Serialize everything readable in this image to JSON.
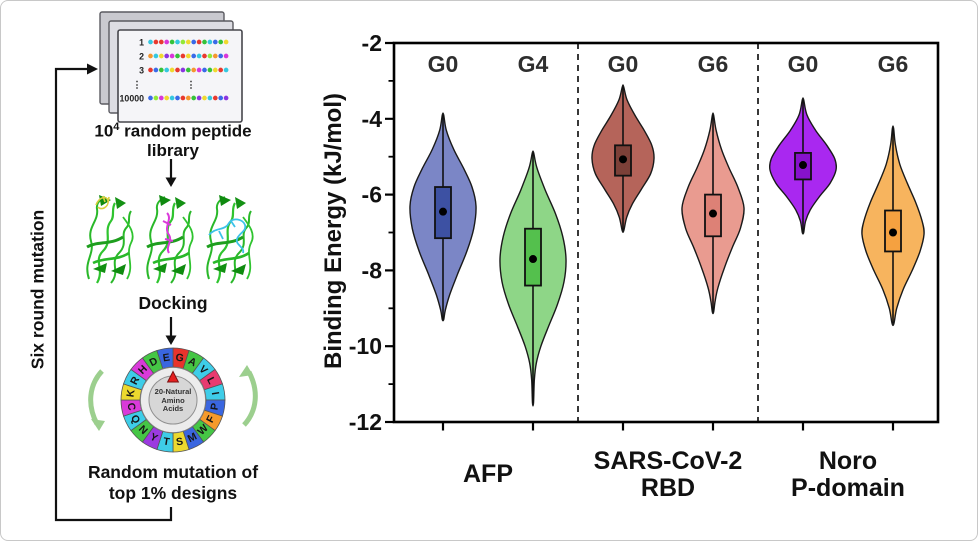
{
  "workflow": {
    "six_round_label": "Six round mutation",
    "library": {
      "caption_base": "10",
      "caption_sup": "4",
      "caption_rest": " random peptide",
      "caption_line2": "library",
      "rows": [
        {
          "label": "1",
          "dots": [
            "#35c8e0",
            "#e8392f",
            "#e8392f",
            "#d937d9",
            "#35c23a",
            "#35c8e0",
            "#93e838",
            "#f0d92f",
            "#3a6ae8",
            "#e8392f",
            "#35c23a",
            "#35c8e0",
            "#3a6ae8",
            "#35c23a",
            "#f0d92f"
          ]
        },
        {
          "label": "2",
          "dots": [
            "#f5972f",
            "#35c8e0",
            "#f0d92f",
            "#8a35e0",
            "#d937d9",
            "#35c23a",
            "#e8392f",
            "#f0d92f",
            "#3a6ae8",
            "#35c8e0",
            "#e8392f",
            "#93e838",
            "#f5972f",
            "#3a6ae8",
            "#d937d9"
          ]
        },
        {
          "label": "3",
          "dots": [
            "#e8392f",
            "#3a6ae8",
            "#35c23a",
            "#35c8e0",
            "#f0d92f",
            "#e8392f",
            "#8a35e0",
            "#35c23a",
            "#f5972f",
            "#d937d9",
            "#3a6ae8",
            "#35c23a",
            "#f0d92f",
            "#e8392f",
            "#35c8e0"
          ]
        },
        {
          "label": "⋮",
          "ellipsis": true
        },
        {
          "label": "10000",
          "dots": [
            "#3a6ae8",
            "#93e838",
            "#d937d9",
            "#f0d92f",
            "#35c8e0",
            "#3a6ae8",
            "#e8392f",
            "#f5972f",
            "#35c23a",
            "#8a35e0",
            "#f0d92f",
            "#35c8e0",
            "#e8392f",
            "#3a6ae8",
            "#8a35e0"
          ]
        }
      ]
    },
    "docking_label": "Docking",
    "mutation_caption_line1": "Random mutation of",
    "mutation_caption_line2": "top 1% designs",
    "wheel": {
      "center_lines": [
        "20-Natural",
        "Amino",
        "Acids"
      ],
      "segments": [
        {
          "letter": "G",
          "color": "#e8332c"
        },
        {
          "letter": "A",
          "color": "#45c645"
        },
        {
          "letter": "V",
          "color": "#3ecde8"
        },
        {
          "letter": "L",
          "color": "#e83a70"
        },
        {
          "letter": "I",
          "color": "#3ecde8"
        },
        {
          "letter": "P",
          "color": "#3a66e0"
        },
        {
          "letter": "F",
          "color": "#f59a2b"
        },
        {
          "letter": "W",
          "color": "#45c645"
        },
        {
          "letter": "M",
          "color": "#3a66e0"
        },
        {
          "letter": "S",
          "color": "#ecd92e"
        },
        {
          "letter": "T",
          "color": "#3ecde8"
        },
        {
          "letter": "Y",
          "color": "#9b3ae0"
        },
        {
          "letter": "N",
          "color": "#45c645"
        },
        {
          "letter": "Q",
          "color": "#3ecde8"
        },
        {
          "letter": "C",
          "color": "#d93ad9"
        },
        {
          "letter": "K",
          "color": "#ecd92e"
        },
        {
          "letter": "R",
          "color": "#3ecde8"
        },
        {
          "letter": "H",
          "color": "#d93ad9"
        },
        {
          "letter": "D",
          "color": "#45c645"
        },
        {
          "letter": "E",
          "color": "#3a66e0"
        }
      ]
    }
  },
  "chart_data": {
    "type": "violin",
    "title": "",
    "ylabel": "Binding Energy (kJ/mol)",
    "units": "kJ/mol",
    "ylim": [
      -12,
      -2
    ],
    "yticks": [
      -2,
      -4,
      -6,
      -8,
      -10,
      -12
    ],
    "grid": false,
    "legend": "none",
    "generation_label_color": "#2e2e2e",
    "groups": [
      {
        "label_lines": [
          "AFP"
        ],
        "violins": [
          {
            "generation": "G0",
            "fill": "#7b86c6",
            "box_fill": "#3d51a3",
            "max": -3.9,
            "min": -9.3,
            "q3": -5.8,
            "q1": -7.15,
            "mean": -6.45,
            "half_width": 33,
            "profile": [
              [
                -3.9,
                0.02
              ],
              [
                -4.3,
                0.1
              ],
              [
                -4.8,
                0.32
              ],
              [
                -5.3,
                0.62
              ],
              [
                -5.8,
                0.88
              ],
              [
                -6.3,
                1.0
              ],
              [
                -6.9,
                0.93
              ],
              [
                -7.5,
                0.72
              ],
              [
                -8.1,
                0.44
              ],
              [
                -8.65,
                0.2
              ],
              [
                -9.05,
                0.07
              ],
              [
                -9.3,
                0.02
              ]
            ]
          },
          {
            "generation": "G4",
            "fill": "#8ed687",
            "box_fill": "#54c04d",
            "max": -4.9,
            "min": -11.5,
            "q3": -6.9,
            "q1": -8.4,
            "mean": -7.7,
            "half_width": 33,
            "profile": [
              [
                -4.9,
                0.02
              ],
              [
                -5.3,
                0.12
              ],
              [
                -5.9,
                0.38
              ],
              [
                -6.5,
                0.68
              ],
              [
                -7.1,
                0.9
              ],
              [
                -7.7,
                1.0
              ],
              [
                -8.3,
                0.94
              ],
              [
                -8.9,
                0.74
              ],
              [
                -9.5,
                0.46
              ],
              [
                -10.0,
                0.24
              ],
              [
                -10.45,
                0.1
              ],
              [
                -10.9,
                0.04
              ],
              [
                -11.5,
                0.015
              ]
            ]
          }
        ]
      },
      {
        "label_lines": [
          "SARS-CoV-2",
          "RBD"
        ],
        "violins": [
          {
            "generation": "G0",
            "fill": "#b5645a",
            "box_fill": "#7c4038",
            "max": -3.15,
            "min": -6.95,
            "q3": -4.7,
            "q1": -5.5,
            "mean": -5.07,
            "half_width": 31,
            "profile": [
              [
                -3.15,
                0.02
              ],
              [
                -3.5,
                0.13
              ],
              [
                -3.9,
                0.38
              ],
              [
                -4.3,
                0.68
              ],
              [
                -4.7,
                0.93
              ],
              [
                -5.05,
                1.0
              ],
              [
                -5.45,
                0.89
              ],
              [
                -5.85,
                0.6
              ],
              [
                -6.25,
                0.3
              ],
              [
                -6.6,
                0.12
              ],
              [
                -6.95,
                0.025
              ]
            ]
          },
          {
            "generation": "G6",
            "fill": "#e99b90",
            "box_fill": "#dd8176",
            "max": -3.9,
            "min": -9.1,
            "q3": -6.0,
            "q1": -7.1,
            "mean": -6.5,
            "half_width": 31,
            "profile": [
              [
                -3.9,
                0.02
              ],
              [
                -4.3,
                0.1
              ],
              [
                -4.8,
                0.27
              ],
              [
                -5.3,
                0.52
              ],
              [
                -5.8,
                0.8
              ],
              [
                -6.35,
                1.0
              ],
              [
                -6.9,
                0.88
              ],
              [
                -7.4,
                0.62
              ],
              [
                -7.95,
                0.36
              ],
              [
                -8.45,
                0.16
              ],
              [
                -8.8,
                0.07
              ],
              [
                -9.1,
                0.02
              ]
            ]
          }
        ]
      },
      {
        "label_lines": [
          "Noro",
          "P-domain"
        ],
        "violins": [
          {
            "generation": "G0",
            "fill": "#a928f0",
            "box_fill": "#8712cc",
            "max": -3.5,
            "min": -7.0,
            "q3": -4.9,
            "q1": -5.6,
            "mean": -5.22,
            "half_width": 33,
            "profile": [
              [
                -3.5,
                0.02
              ],
              [
                -3.9,
                0.12
              ],
              [
                -4.3,
                0.38
              ],
              [
                -4.7,
                0.72
              ],
              [
                -5.05,
                0.96
              ],
              [
                -5.35,
                1.0
              ],
              [
                -5.7,
                0.82
              ],
              [
                -6.05,
                0.5
              ],
              [
                -6.4,
                0.22
              ],
              [
                -6.7,
                0.08
              ],
              [
                -7.0,
                0.02
              ]
            ]
          },
          {
            "generation": "G6",
            "fill": "#f7b45e",
            "box_fill": "#f5a140",
            "max": -4.25,
            "min": -9.4,
            "q3": -6.42,
            "q1": -7.5,
            "mean": -7.0,
            "half_width": 31,
            "profile": [
              [
                -4.25,
                0.02
              ],
              [
                -4.7,
                0.08
              ],
              [
                -5.2,
                0.22
              ],
              [
                -5.7,
                0.46
              ],
              [
                -6.2,
                0.73
              ],
              [
                -6.7,
                0.94
              ],
              [
                -7.05,
                1.0
              ],
              [
                -7.5,
                0.87
              ],
              [
                -8.0,
                0.62
              ],
              [
                -8.5,
                0.33
              ],
              [
                -9.0,
                0.12
              ],
              [
                -9.4,
                0.03
              ]
            ]
          }
        ]
      }
    ]
  }
}
